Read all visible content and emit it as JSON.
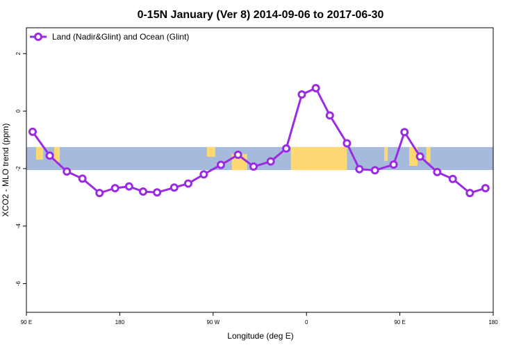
{
  "chart_data": {
    "type": "line",
    "title": "0-15N January (Ver 8)   2014-09-06 to 2017-06-30",
    "xlabel": "Longitude (deg E)",
    "ylabel": "XCO2 - MLO trend (ppm)",
    "x_ticks": [
      {
        "value": -90,
        "label": "90 E"
      },
      {
        "value": -60,
        "label": "180"
      },
      {
        "value": -30,
        "label": "90 W"
      },
      {
        "value": 0,
        "label": "0"
      },
      {
        "value": 30,
        "label": "90 E"
      },
      {
        "value": 60,
        "label": "180"
      }
    ],
    "y_ticks": [
      2,
      0,
      -2,
      -4,
      -6
    ],
    "xlim": [
      -90,
      60
    ],
    "ylim": [
      -7,
      2.9
    ],
    "band": {
      "y_range": [
        -2.05,
        -1.25
      ],
      "description": "longitude/land map strip"
    },
    "legend_position": "top-left",
    "colors": {
      "series": "#9a2be3",
      "ocean": "#a6bbdc",
      "land": "#fdd873"
    },
    "series": [
      {
        "name": "Land (Nadir&Glint) and Ocean (Glint)",
        "x": [
          -88,
          -82.5,
          -77,
          -72,
          -66.5,
          -61.5,
          -57,
          -52.5,
          -48,
          -42.5,
          -38,
          -33,
          -27.5,
          -22,
          -17,
          -11.5,
          -6.5,
          -1.5,
          3,
          7.5,
          13,
          17,
          22,
          28,
          31.5,
          36.5,
          42,
          47,
          52.5,
          57.5
        ],
        "y": [
          -0.72,
          -1.55,
          -2.1,
          -2.35,
          -2.85,
          -2.68,
          -2.62,
          -2.8,
          -2.83,
          -2.66,
          -2.52,
          -2.2,
          -1.87,
          -1.52,
          -1.93,
          -1.75,
          -1.3,
          0.58,
          0.8,
          -0.15,
          -1.12,
          -2.02,
          -2.06,
          -1.86,
          -0.73,
          -1.58,
          -2.12,
          -2.36,
          -2.85,
          -2.68
        ]
      }
    ]
  }
}
